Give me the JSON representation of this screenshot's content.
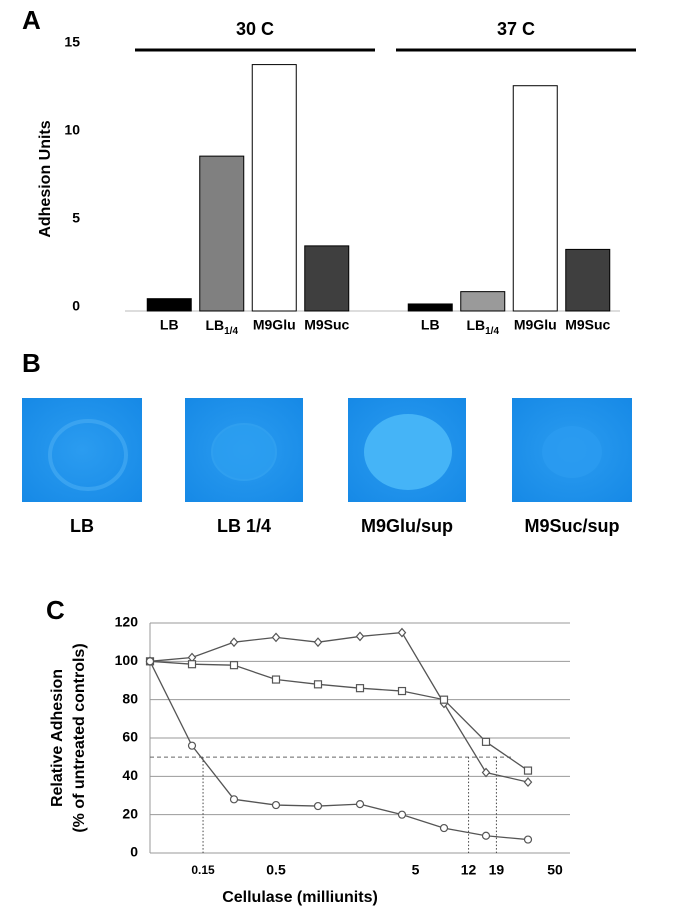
{
  "chart_data": [
    {
      "panel_label": "A",
      "type": "bar",
      "ylabel": "Adhesion Units",
      "ylim": [
        0,
        15
      ],
      "yticks": [
        0,
        5,
        10,
        15
      ],
      "groups": [
        {
          "title": "30 C",
          "categories": [
            "LB",
            {
              "text": "LB",
              "subscript": "1/4"
            },
            "M9Glu",
            "M9Suc"
          ],
          "values": [
            0.7,
            8.8,
            14.0,
            3.7
          ],
          "colors": [
            "#000000",
            "#808080",
            "#ffffff",
            "#3f3f3f"
          ]
        },
        {
          "title": "37 C",
          "categories": [
            "LB",
            {
              "text": "LB",
              "subscript": "1/4"
            },
            "M9Glu",
            "M9Suc"
          ],
          "values": [
            0.4,
            1.1,
            12.8,
            3.5
          ],
          "colors": [
            "#000000",
            "#9a9a9a",
            "#ffffff",
            "#3f3f3f"
          ]
        }
      ]
    },
    {
      "panel_label": "C",
      "type": "line",
      "ylabel": [
        "Relative Adhesion",
        "(% of untreated controls)"
      ],
      "xlabel": "Cellulase (milliunits)",
      "log_x": true,
      "x": [
        0.0625,
        0.125,
        0.25,
        0.5,
        1,
        2,
        4,
        8,
        16,
        32
      ],
      "xlim": [
        0.0625,
        64
      ],
      "xticks": [
        0.15,
        0.5,
        5,
        12,
        19,
        50
      ],
      "ylim": [
        0,
        120
      ],
      "yticks": [
        0,
        20,
        40,
        60,
        80,
        100,
        120
      ],
      "grid": true,
      "threshold": 50,
      "crossings_x": [
        0.15,
        12,
        19
      ],
      "series": [
        {
          "marker": "diamond",
          "color": "#555555",
          "values": [
            100,
            102,
            110,
            112.5,
            110,
            113,
            115,
            78,
            42,
            37
          ]
        },
        {
          "marker": "square",
          "color": "#555555",
          "values": [
            100,
            98.5,
            98,
            90.5,
            88,
            86,
            84.5,
            80,
            58,
            43
          ]
        },
        {
          "marker": "circle",
          "color": "#555555",
          "values": [
            100,
            56,
            28,
            25,
            24.5,
            25.5,
            20,
            13,
            9,
            7
          ]
        }
      ]
    }
  ],
  "panel_b": {
    "panel_label": "B",
    "labels": [
      "LB",
      "LB 1/4",
      "M9Glu/sup",
      "M9Suc/sup"
    ]
  }
}
